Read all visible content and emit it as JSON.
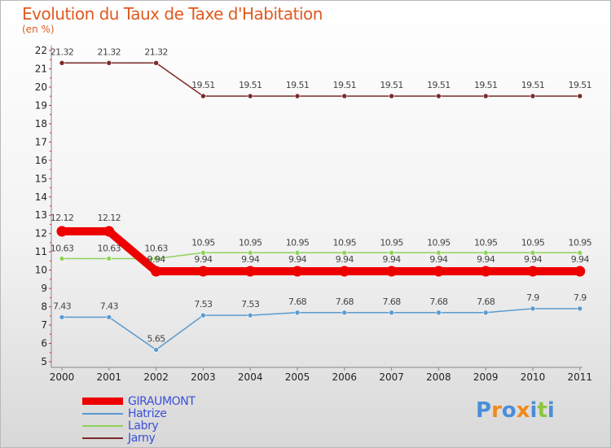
{
  "chart_data": {
    "type": "line",
    "title": "Evolution du Taux de Taxe d'Habitation",
    "subtitle": "(en %)",
    "xlabel": "",
    "ylabel": "(en %)",
    "categories": [
      "2000",
      "2001",
      "2002",
      "2003",
      "2004",
      "2005",
      "2006",
      "2007",
      "2008",
      "2009",
      "2010",
      "2011"
    ],
    "ylim": [
      5,
      22
    ],
    "yticks": [
      "5",
      "6",
      "7",
      "8",
      "9",
      "10",
      "11",
      "12",
      "13",
      "14",
      "15",
      "16",
      "17",
      "18",
      "19",
      "20",
      "21",
      "22"
    ],
    "series": [
      {
        "name": "Jarny",
        "color": "#7b2a2a",
        "values": [
          21.32,
          21.32,
          21.32,
          19.51,
          19.51,
          19.51,
          19.51,
          19.51,
          19.51,
          19.51,
          19.51,
          19.51
        ],
        "labels": [
          "21.32",
          "21.32",
          "21.32",
          "19.51",
          "19.51",
          "19.51",
          "19.51",
          "19.51",
          "19.51",
          "19.51",
          "19.51",
          "19.51"
        ]
      },
      {
        "name": "Labry",
        "color": "#8fd35a",
        "values": [
          10.63,
          10.63,
          10.63,
          10.95,
          10.95,
          10.95,
          10.95,
          10.95,
          10.95,
          10.95,
          10.95,
          10.95
        ],
        "labels": [
          "10.63",
          "10.63",
          "10.63",
          "10.95",
          "10.95",
          "10.95",
          "10.95",
          "10.95",
          "10.95",
          "10.95",
          "10.95",
          "10.95"
        ]
      },
      {
        "name": "GIRAUMONT",
        "color": "#ee0000",
        "values": [
          12.12,
          12.12,
          9.94,
          9.94,
          9.94,
          9.94,
          9.94,
          9.94,
          9.94,
          9.94,
          9.94,
          9.94
        ],
        "labels": [
          "12.12",
          "12.12",
          "9.94",
          "9.94",
          "9.94",
          "9.94",
          "9.94",
          "9.94",
          "9.94",
          "9.94",
          "9.94",
          "9.94"
        ]
      },
      {
        "name": "Hatrize",
        "color": "#5a9ad0",
        "values": [
          7.43,
          7.43,
          5.65,
          7.53,
          7.53,
          7.68,
          7.68,
          7.68,
          7.68,
          7.68,
          7.9,
          7.9
        ],
        "labels": [
          "7.43",
          "7.43",
          "5.65",
          "7.53",
          "7.53",
          "7.68",
          "7.68",
          "7.68",
          "7.68",
          "7.68",
          "7.9",
          "7.9"
        ]
      }
    ],
    "legend": [
      {
        "name": "GIRAUMONT",
        "color": "#ee0000"
      },
      {
        "name": "Hatrize",
        "color": "#5a9ad0"
      },
      {
        "name": "Labry",
        "color": "#8fd35a"
      },
      {
        "name": "Jarny",
        "color": "#7b2a2a"
      }
    ],
    "legend_position": "bottom-left"
  },
  "logo": {
    "text": "Proxiti",
    "letters": [
      "P",
      "r",
      "o",
      "x",
      "i",
      "t",
      "i"
    ],
    "colors": [
      "#4a8fd8",
      "#f08a1c",
      "#4a8fd8",
      "#f08a1c",
      "#4a8fd8",
      "#8cc63f",
      "#4a8fd8"
    ]
  }
}
